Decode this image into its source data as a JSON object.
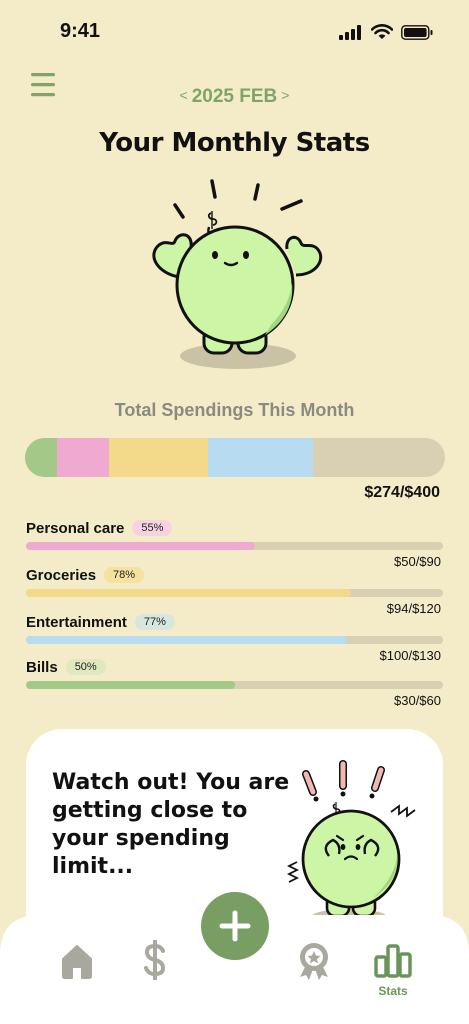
{
  "status_bar": {
    "time": "9:41"
  },
  "header": {
    "month_prev": "<",
    "month_label": "2025 FEB",
    "month_next": ">",
    "title": "Your Monthly Stats"
  },
  "summary": {
    "heading": "Total Spendings This Month",
    "spent": 274,
    "limit": 400,
    "amount_label": "$274/$400",
    "segments": [
      {
        "name": "Bills",
        "value": 30,
        "color": "#a3c888"
      },
      {
        "name": "Personal care",
        "value": 50,
        "color": "#eeaad0"
      },
      {
        "name": "Groceries",
        "value": 94,
        "color": "#f3d98a"
      },
      {
        "name": "Entertainment",
        "value": 100,
        "color": "#b7dcf2"
      }
    ],
    "remaining_color": "#d9cfb2"
  },
  "categories": [
    {
      "label": "Personal care",
      "percent_label": "55%",
      "percent": 55,
      "amount": "$50/$90",
      "color": "#eeaad0",
      "badge_color": "#f7d3e2"
    },
    {
      "label": "Groceries",
      "percent_label": "78%",
      "percent": 78,
      "amount": "$94/$120",
      "color": "#f3d98a",
      "badge_color": "#f5e29f"
    },
    {
      "label": "Entertainment",
      "percent_label": "77%",
      "percent": 77,
      "amount": "$100/$130",
      "color": "#b7dcf2",
      "badge_color": "#d7e6df"
    },
    {
      "label": "Bills",
      "percent_label": "50%",
      "percent": 50,
      "amount": "$30/$60",
      "color": "#a3c888",
      "badge_color": "#dfe8bf"
    }
  ],
  "alert": {
    "message": "Watch out! You are getting close to your spending limit..."
  },
  "bottom_nav": {
    "items": [
      {
        "icon": "home-icon"
      },
      {
        "icon": "dollar-icon"
      },
      {
        "icon": "plus-icon"
      },
      {
        "icon": "award-icon"
      },
      {
        "icon": "stats-icon",
        "label": "Stats",
        "active": true
      }
    ],
    "active_color": "#6a955a",
    "inactive_color": "#a8a89f"
  }
}
